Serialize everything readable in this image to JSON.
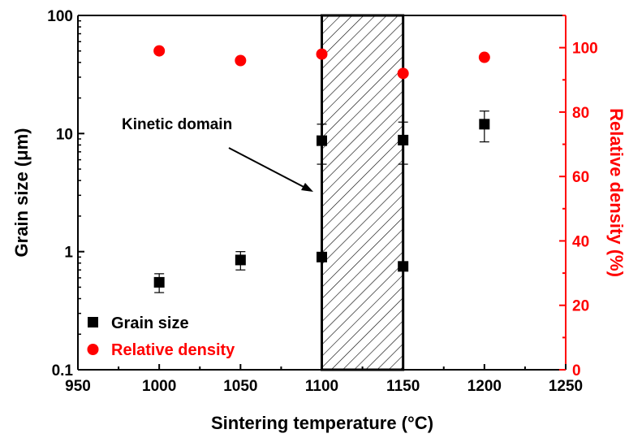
{
  "chart_data": {
    "type": "scatter",
    "xlabel": "Sintering temperature (°C)",
    "ylabel_left": "Grain size (μm)",
    "ylabel_right": "Relative density (%)",
    "xlim": [
      950,
      1250
    ],
    "xticks": [
      "950",
      "1000",
      "1050",
      "1100",
      "1150",
      "1200",
      "1250"
    ],
    "ylim_left": [
      0.1,
      100
    ],
    "yscale_left": "log",
    "yticks_left": [
      "0.1",
      "1",
      "10",
      "100"
    ],
    "ylim_right": [
      0,
      110
    ],
    "yticks_right": [
      "0",
      "20",
      "40",
      "60",
      "80",
      "100"
    ],
    "shaded_region": {
      "x": [
        1100,
        1150
      ],
      "pattern": "hatched",
      "label": "Kinetic domain"
    },
    "legend": {
      "position": "bottom-left"
    },
    "series": [
      {
        "name": "Grain size",
        "axis": "left",
        "marker": "square",
        "color": "#000000",
        "points": [
          {
            "x": 1000,
            "y": 0.55,
            "err_low": 0.45,
            "err_high": 0.65
          },
          {
            "x": 1050,
            "y": 0.85,
            "err_low": 0.7,
            "err_high": 1.0
          },
          {
            "x": 1100,
            "y": 0.9
          },
          {
            "x": 1100,
            "y": 8.7,
            "err_low": 5.5,
            "err_high": 12.0
          },
          {
            "x": 1150,
            "y": 0.75
          },
          {
            "x": 1150,
            "y": 8.8,
            "err_low": 5.5,
            "err_high": 12.5
          },
          {
            "x": 1200,
            "y": 12.0,
            "err_low": 8.5,
            "err_high": 15.5
          }
        ]
      },
      {
        "name": "Relative density",
        "axis": "right",
        "marker": "circle",
        "color": "#ff0000",
        "points": [
          {
            "x": 1000,
            "y": 99
          },
          {
            "x": 1050,
            "y": 96
          },
          {
            "x": 1100,
            "y": 98
          },
          {
            "x": 1150,
            "y": 92
          },
          {
            "x": 1200,
            "y": 97
          }
        ]
      }
    ]
  }
}
